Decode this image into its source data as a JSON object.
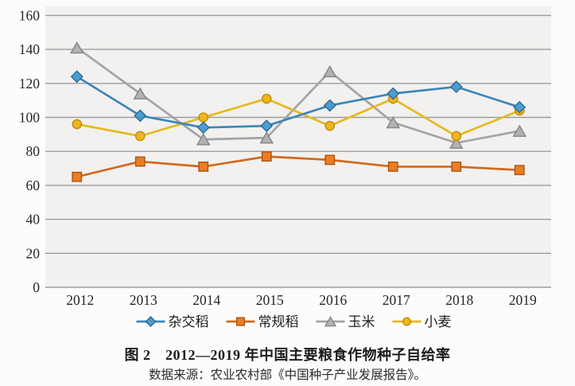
{
  "figure": {
    "title": "图 2　2012—2019 年中国主要粮食作物种子自给率",
    "source": "数据来源：农业农村部《中国种子产业发展报告》。"
  },
  "chart_data": {
    "type": "line",
    "x": [
      "2012",
      "2013",
      "2014",
      "2015",
      "2016",
      "2017",
      "2018",
      "2019"
    ],
    "series": [
      {
        "name": "杂交稻",
        "slug": "hybrid-rice",
        "marker": "diamond",
        "line_color": "#3c86b8",
        "marker_fill": "#4e9ccf",
        "marker_stroke": "#2b6b92",
        "values": [
          124,
          101,
          94,
          95,
          107,
          114,
          118,
          106
        ]
      },
      {
        "name": "常规稻",
        "slug": "conventional-rice",
        "marker": "square",
        "line_color": "#d2691c",
        "marker_fill": "#ec7d22",
        "marker_stroke": "#a85413",
        "values": [
          65,
          74,
          71,
          77,
          75,
          71,
          71,
          69
        ]
      },
      {
        "name": "玉米",
        "slug": "corn",
        "marker": "triangle",
        "line_color": "#a4a4a4",
        "marker_fill": "#b2b2b2",
        "marker_stroke": "#858585",
        "values": [
          141,
          114,
          87,
          88,
          127,
          97,
          85,
          92
        ]
      },
      {
        "name": "小麦",
        "slug": "wheat",
        "marker": "circle",
        "line_color": "#e5b91f",
        "marker_fill": "#f1b51c",
        "marker_stroke": "#ba8e10",
        "values": [
          96,
          89,
          100,
          111,
          95,
          111,
          89,
          104
        ]
      }
    ],
    "ylim": [
      0,
      160
    ],
    "ytick_step": 20,
    "ytick_labels": [
      "0",
      "20",
      "40",
      "60",
      "80",
      "100",
      "120",
      "140",
      "160"
    ],
    "grid": true,
    "legend_position": "bottom",
    "title": "图 2　2012—2019 年中国主要粮食作物种子自给率",
    "xlabel": "",
    "ylabel": ""
  },
  "style": {
    "plot_bg": "#f2f1ef",
    "grid_color": "#9c9c9c",
    "axis_text_color": "#262626"
  }
}
